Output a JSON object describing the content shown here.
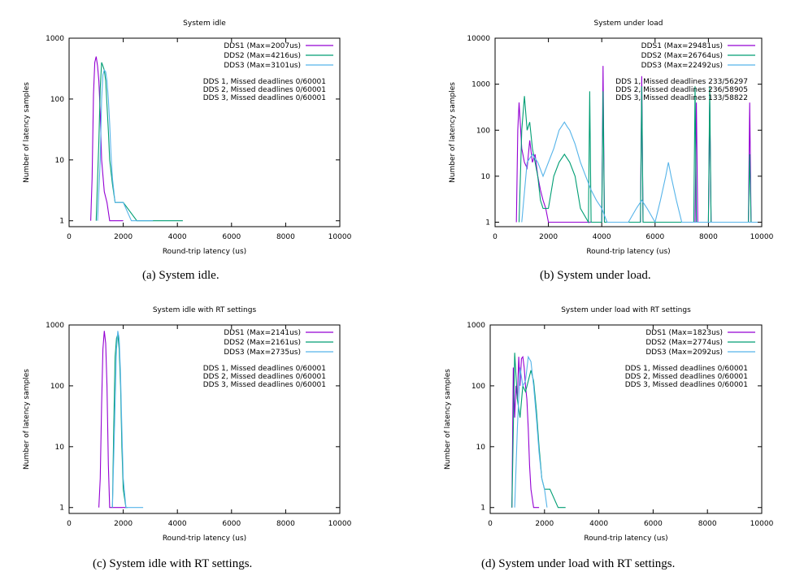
{
  "figure": {
    "captions": [
      "(a) System idle.",
      "(b) System under load.",
      "(c) System idle with RT settings.",
      "(d) System under load with RT settings."
    ]
  },
  "chart_data": [
    {
      "type": "line",
      "title": "System idle",
      "xlabel": "Round-trip latency (us)",
      "ylabel": "Number of latency samples",
      "xlim": [
        0,
        10000
      ],
      "ylim": [
        0.8,
        1000
      ],
      "y_scale": "log",
      "x_ticks": [
        0,
        2000,
        4000,
        6000,
        8000,
        10000
      ],
      "y_ticks": [
        1,
        10,
        100,
        1000
      ],
      "y_tick_labels": [
        "1",
        "10",
        "100",
        "1000"
      ],
      "grid": false,
      "legend_position": "top-right",
      "series": [
        {
          "name": "DDS1 (Max=2007us)",
          "color": "#9400d3",
          "x": [
            800,
            850,
            900,
            950,
            1000,
            1050,
            1100,
            1150,
            1200,
            1300,
            1400,
            1500,
            1700,
            2000
          ],
          "y": [
            1,
            5,
            120,
            400,
            500,
            350,
            200,
            60,
            10,
            3,
            2,
            1,
            1,
            1
          ]
        },
        {
          "name": "DDS2 (Max=4216us)",
          "color": "#009e73",
          "x": [
            1000,
            1100,
            1150,
            1200,
            1250,
            1300,
            1350,
            1400,
            1450,
            1500,
            1600,
            1700,
            1800,
            2000,
            2500,
            3500,
            4200
          ],
          "y": [
            1,
            20,
            150,
            400,
            350,
            300,
            200,
            80,
            30,
            10,
            4,
            2,
            2,
            2,
            1,
            1,
            1
          ]
        },
        {
          "name": "DDS3 (Max=3101us)",
          "color": "#56b4e9",
          "x": [
            1050,
            1150,
            1200,
            1250,
            1300,
            1350,
            1400,
            1450,
            1500,
            1550,
            1600,
            1700,
            1800,
            2000,
            2300,
            2700,
            3100
          ],
          "y": [
            1,
            10,
            100,
            250,
            300,
            280,
            200,
            100,
            40,
            12,
            5,
            2,
            2,
            2,
            1,
            1,
            1
          ]
        }
      ],
      "annotations": [
        "DDS 1, Missed deadlines 0/60001",
        "DDS 2, Missed deadlines 0/60001",
        "DDS 3, Missed deadlines 0/60001"
      ]
    },
    {
      "type": "line",
      "title": "System under load",
      "xlabel": "Round-trip latency (us)",
      "ylabel": "Number of latency samples",
      "xlim": [
        0,
        10000
      ],
      "ylim": [
        0.8,
        10000
      ],
      "y_scale": "log",
      "x_ticks": [
        0,
        2000,
        4000,
        6000,
        8000,
        10000
      ],
      "y_ticks": [
        1,
        10,
        100,
        1000,
        10000
      ],
      "y_tick_labels": [
        "1",
        "10",
        "100",
        "1000",
        "10000"
      ],
      "grid": false,
      "legend_position": "top-right",
      "series": [
        {
          "name": "DDS1 (Max=29481us)",
          "color": "#9400d3",
          "x": [
            800,
            850,
            900,
            1000,
            1100,
            1200,
            1300,
            1400,
            1500,
            1600,
            1700,
            1800,
            1900,
            2000,
            2200,
            2500,
            3000,
            3500,
            3600,
            3700,
            4000,
            4050,
            4100,
            4500,
            5000,
            5450,
            5500,
            5550,
            6000,
            7000,
            7500,
            7550,
            7600,
            8000,
            8050,
            8100,
            9000,
            9500,
            9550,
            9600,
            10000
          ],
          "y": [
            1,
            100,
            400,
            40,
            20,
            15,
            60,
            20,
            30,
            10,
            5,
            3,
            2,
            1,
            1,
            1,
            1,
            1,
            1,
            1,
            1,
            2500,
            1,
            1,
            1,
            1,
            1500,
            1,
            1,
            1,
            1,
            400,
            1,
            1,
            400,
            1,
            1,
            1,
            400,
            1,
            1
          ]
        },
        {
          "name": "DDS2 (Max=26764us)",
          "color": "#009e73",
          "x": [
            900,
            1000,
            1100,
            1200,
            1300,
            1400,
            1500,
            1600,
            1700,
            1800,
            2000,
            2200,
            2400,
            2600,
            2800,
            3000,
            3200,
            3500,
            3550,
            3600,
            4000,
            4050,
            4100,
            4500,
            5000,
            5450,
            5500,
            5550,
            6000,
            7000,
            7450,
            7500,
            7550,
            8000,
            8050,
            8100,
            9000,
            9500,
            9550,
            9600,
            10000
          ],
          "y": [
            1,
            100,
            550,
            100,
            150,
            40,
            20,
            10,
            3,
            2,
            2,
            10,
            20,
            30,
            20,
            10,
            2,
            1,
            700,
            1,
            1,
            700,
            1,
            1,
            1,
            1,
            900,
            1,
            1,
            1,
            1,
            900,
            1,
            1,
            900,
            1,
            1,
            1,
            30,
            1,
            1
          ]
        },
        {
          "name": "DDS3 (Max=22492us)",
          "color": "#56b4e9",
          "x": [
            1000,
            1200,
            1400,
            1600,
            1800,
            2000,
            2200,
            2400,
            2600,
            2700,
            2800,
            3000,
            3200,
            3400,
            3600,
            3800,
            4000,
            4200,
            4500,
            5000,
            5300,
            5500,
            5700,
            6000,
            6200,
            6400,
            6500,
            6600,
            6800,
            7000,
            7500,
            8000,
            8500,
            9000,
            9500,
            10000
          ],
          "y": [
            1,
            20,
            30,
            20,
            10,
            20,
            40,
            100,
            150,
            120,
            100,
            50,
            20,
            10,
            5,
            3,
            2,
            1,
            1,
            1,
            2,
            3,
            2,
            1,
            3,
            10,
            20,
            10,
            3,
            1,
            1,
            1,
            1,
            1,
            1,
            1
          ]
        }
      ],
      "annotations": [
        "DDS 1, Missed deadlines 233/56297",
        "DDS 2, Missed deadlines 236/58905",
        "DDS 3, Missed deadlines 133/58822"
      ]
    },
    {
      "type": "line",
      "title": "System idle with RT settings",
      "xlabel": "Round-trip latency (us)",
      "ylabel": "Number of latency samples",
      "xlim": [
        0,
        10000
      ],
      "ylim": [
        0.8,
        1000
      ],
      "y_scale": "log",
      "x_ticks": [
        0,
        2000,
        4000,
        6000,
        8000,
        10000
      ],
      "y_ticks": [
        1,
        10,
        100,
        1000
      ],
      "y_tick_labels": [
        "1",
        "10",
        "100",
        "1000"
      ],
      "grid": false,
      "legend_position": "top-right",
      "series": [
        {
          "name": "DDS1 (Max=2141us)",
          "color": "#9400d3",
          "x": [
            1100,
            1150,
            1200,
            1250,
            1300,
            1350,
            1400,
            1450,
            1500,
            1600,
            2100
          ],
          "y": [
            1,
            3,
            50,
            400,
            800,
            500,
            100,
            5,
            1,
            1,
            1
          ]
        },
        {
          "name": "DDS2 (Max=2161us)",
          "color": "#009e73",
          "x": [
            1600,
            1650,
            1700,
            1750,
            1800,
            1850,
            1900,
            1950,
            2000,
            2100,
            2160
          ],
          "y": [
            1,
            20,
            300,
            600,
            700,
            400,
            100,
            10,
            2,
            1,
            1
          ]
        },
        {
          "name": "DDS3 (Max=2735us)",
          "color": "#56b4e9",
          "x": [
            1600,
            1700,
            1750,
            1800,
            1850,
            1900,
            1950,
            2000,
            2100,
            2300,
            2735
          ],
          "y": [
            1,
            50,
            400,
            800,
            600,
            150,
            20,
            3,
            1,
            1,
            1
          ]
        }
      ],
      "annotations": [
        "DDS 1, Missed deadlines 0/60001",
        "DDS 2, Missed deadlines 0/60001",
        "DDS 3, Missed deadlines 0/60001"
      ]
    },
    {
      "type": "line",
      "title": "System under load  with RT settings",
      "xlabel": "Round-trip latency (us)",
      "ylabel": "Number of latency samples",
      "xlim": [
        0,
        10000
      ],
      "ylim": [
        0.8,
        1000
      ],
      "y_scale": "log",
      "x_ticks": [
        0,
        2000,
        4000,
        6000,
        8000,
        10000
      ],
      "y_ticks": [
        1,
        10,
        100,
        1000
      ],
      "y_tick_labels": [
        "1",
        "10",
        "100",
        "1000"
      ],
      "grid": false,
      "legend_position": "top-right",
      "series": [
        {
          "name": "DDS1 (Max=1823us)",
          "color": "#9400d3",
          "x": [
            800,
            850,
            900,
            950,
            1000,
            1050,
            1100,
            1150,
            1200,
            1250,
            1300,
            1350,
            1400,
            1450,
            1500,
            1600,
            1800
          ],
          "y": [
            1,
            200,
            30,
            100,
            60,
            300,
            100,
            280,
            300,
            200,
            100,
            60,
            20,
            5,
            2,
            1,
            1
          ]
        },
        {
          "name": "DDS2 (Max=2774us)",
          "color": "#009e73",
          "x": [
            800,
            900,
            1000,
            1100,
            1200,
            1300,
            1400,
            1500,
            1600,
            1700,
            1800,
            1900,
            2000,
            2200,
            2500,
            2774
          ],
          "y": [
            1,
            350,
            60,
            30,
            100,
            80,
            120,
            180,
            120,
            40,
            10,
            3,
            2,
            2,
            1,
            1
          ]
        },
        {
          "name": "DDS3 (Max=2092us)",
          "color": "#56b4e9",
          "x": [
            900,
            1000,
            1100,
            1200,
            1300,
            1400,
            1500,
            1600,
            1700,
            1800,
            1900,
            2000,
            2092
          ],
          "y": [
            1,
            20,
            200,
            100,
            120,
            300,
            250,
            100,
            30,
            8,
            3,
            2,
            1
          ]
        }
      ],
      "annotations": [
        "DDS 1, Missed deadlines 0/60001",
        "DDS 2, Missed deadlines 0/60001",
        "DDS 3, Missed deadlines 0/60001"
      ]
    }
  ]
}
